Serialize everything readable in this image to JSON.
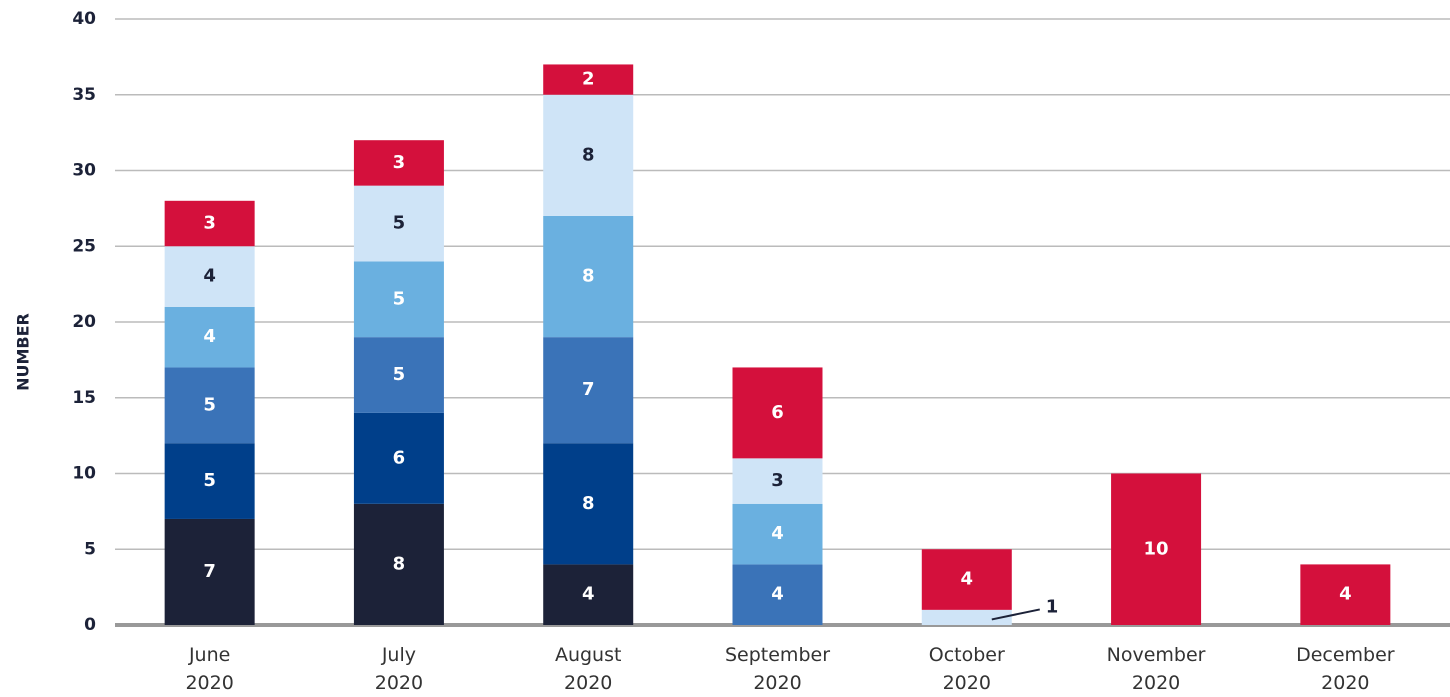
{
  "chart_data": {
    "type": "stacked_bar",
    "y_label": "NUMBER",
    "categories": [
      "June 2020",
      "July 2020",
      "August 2020",
      "September 2020",
      "October 2020",
      "November 2020",
      "December 2020"
    ],
    "series": [
      {
        "color": "#1c2238",
        "values": [
          7,
          8,
          4,
          null,
          null,
          null,
          null
        ]
      },
      {
        "color": "#003f8a",
        "values": [
          5,
          6,
          8,
          null,
          null,
          null,
          null
        ]
      },
      {
        "color": "#3a73b8",
        "values": [
          5,
          5,
          7,
          4,
          null,
          null,
          null
        ]
      },
      {
        "color": "#6ab0e0",
        "values": [
          4,
          5,
          8,
          4,
          null,
          null,
          null
        ]
      },
      {
        "color": "#cfe4f7",
        "values": [
          4,
          5,
          8,
          3,
          1,
          null,
          null
        ]
      },
      {
        "color": "#d4103c",
        "values": [
          3,
          3,
          2,
          6,
          4,
          10,
          4
        ]
      }
    ],
    "ylim": [
      0,
      40
    ],
    "yticks": [
      0,
      5,
      10,
      15,
      20,
      25,
      30,
      35,
      40
    ],
    "grid": true
  }
}
